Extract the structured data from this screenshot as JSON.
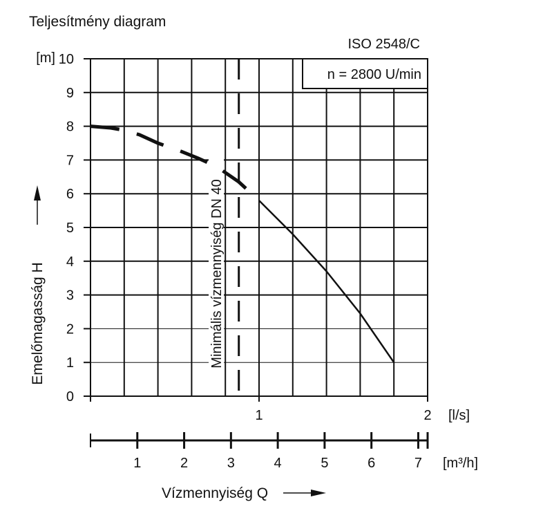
{
  "chart_data": {
    "type": "line",
    "title": "Teljesítmény diagram",
    "standard_label": "ISO 2548/C",
    "speed_label": "n = 2800 U/min",
    "ylabel": "Emelőmagasság H",
    "yunit": "[m]",
    "ylim": [
      0,
      10
    ],
    "yticks": [
      "0",
      "1",
      "2",
      "3",
      "4",
      "5",
      "6",
      "7",
      "8",
      "9",
      "10"
    ],
    "xlabel": "Vízmennyiség Q",
    "x_unit_ls": "[l/s]",
    "x_unit_m3h": "[m³/h]",
    "xlim_ls": [
      0,
      2
    ],
    "xticks_ls": [
      "1",
      "2"
    ],
    "xticks_m3h": [
      "1",
      "2",
      "3",
      "4",
      "5",
      "6",
      "7"
    ],
    "grid": true,
    "min_flow": {
      "label": "Minimális vízmennyiség DN 40",
      "x_ls": 0.88
    },
    "series": [
      {
        "segment": "dashed",
        "points": [
          [
            0.0,
            8.0
          ],
          [
            0.12,
            7.95
          ],
          [
            0.18,
            7.9
          ],
          [
            0.29,
            7.75
          ],
          [
            0.4,
            7.5
          ],
          [
            0.54,
            7.25
          ],
          [
            0.64,
            7.05
          ],
          [
            0.75,
            6.8
          ],
          [
            0.88,
            6.35
          ],
          [
            1.0,
            5.8
          ]
        ]
      },
      {
        "segment": "solid",
        "points": [
          [
            1.0,
            5.8
          ],
          [
            1.2,
            4.8
          ],
          [
            1.4,
            3.7
          ],
          [
            1.6,
            2.45
          ],
          [
            1.8,
            1.0
          ]
        ]
      }
    ]
  }
}
